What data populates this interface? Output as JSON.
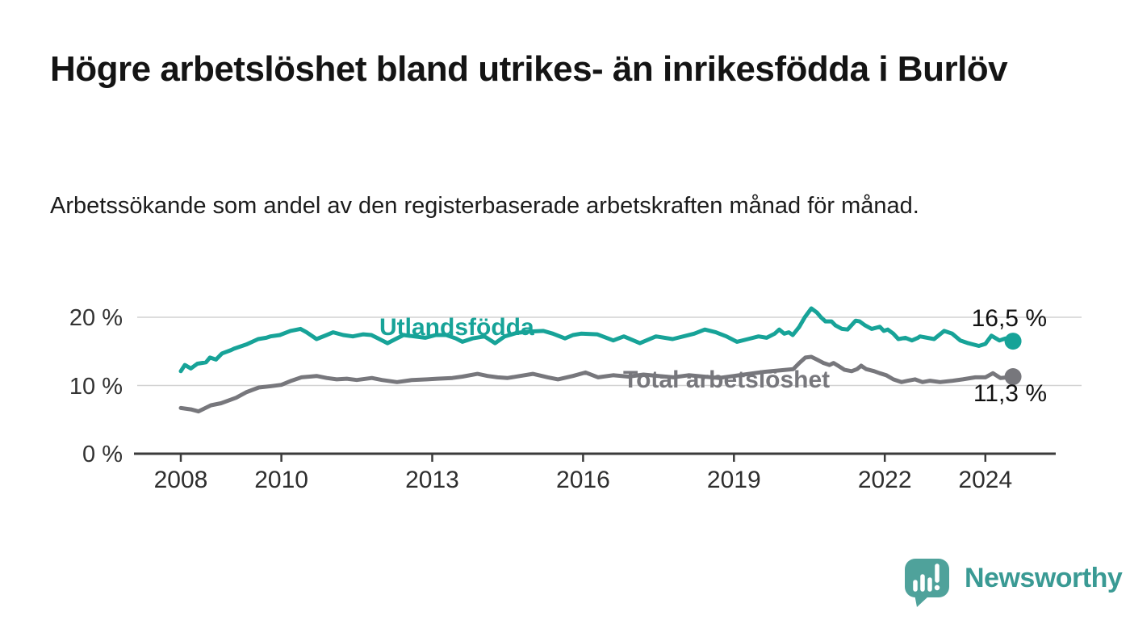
{
  "title": "Högre arbetslöshet bland utrikes- än inrikesfödda i Burlöv",
  "subtitle": "Arbetssökande som andel av den registerbaserade arbetskraften månad för månad.",
  "branding": {
    "logo_text": "Newsworthy",
    "logo_icon": "bar-chart-speech-bubble-icon",
    "logo_text_color": "#3a9a94",
    "logo_icon_color": "#4fa29b"
  },
  "chart_data": {
    "type": "line",
    "title": "Högre arbetslöshet bland utrikes- än inrikesfödda i Burlöv",
    "subtitle": "Arbetssökande som andel av den registerbaserade arbetskraften månad för månad.",
    "xlabel": "",
    "ylabel": "",
    "unit": "%",
    "grid": "horizontal",
    "legend": "inline-labels",
    "xlim": [
      2007.1,
      2025.4
    ],
    "ylim": [
      0,
      23.5
    ],
    "colors": {
      "grid": "#d2d2d2",
      "axis": "#3b3b3b",
      "tick_text": "#333333",
      "end_label_text": "#111111"
    },
    "y_ticks": [
      {
        "label": "20 %",
        "value": 20
      },
      {
        "label": "10 %",
        "value": 10
      },
      {
        "label": "0 %",
        "value": 0
      }
    ],
    "x_ticks": [
      {
        "label": "2008",
        "value": 2008
      },
      {
        "label": "2010",
        "value": 2010
      },
      {
        "label": "2013",
        "value": 2013
      },
      {
        "label": "2016",
        "value": 2016
      },
      {
        "label": "2019",
        "value": 2019
      },
      {
        "label": "2022",
        "value": 2022
      },
      {
        "label": "2024",
        "value": 2024
      }
    ],
    "series": [
      {
        "id": "utlandsfodda",
        "label": "Utlandsfödda",
        "color": "#17a398",
        "end_label": "16,5 %",
        "end_value": 16.5,
        "points": [
          [
            2008.0,
            12.1
          ],
          [
            2008.08,
            13.0
          ],
          [
            2008.2,
            12.5
          ],
          [
            2008.33,
            13.2
          ],
          [
            2008.5,
            13.4
          ],
          [
            2008.58,
            14.1
          ],
          [
            2008.7,
            13.8
          ],
          [
            2008.82,
            14.7
          ],
          [
            2009.0,
            15.2
          ],
          [
            2009.06,
            15.4
          ],
          [
            2009.3,
            16.0
          ],
          [
            2009.54,
            16.8
          ],
          [
            2009.7,
            17.0
          ],
          [
            2009.78,
            17.2
          ],
          [
            2009.97,
            17.4
          ],
          [
            2010.18,
            18.0
          ],
          [
            2010.38,
            18.3
          ],
          [
            2010.5,
            17.8
          ],
          [
            2010.7,
            16.8
          ],
          [
            2010.9,
            17.4
          ],
          [
            2011.03,
            17.8
          ],
          [
            2011.23,
            17.4
          ],
          [
            2011.42,
            17.2
          ],
          [
            2011.63,
            17.5
          ],
          [
            2011.79,
            17.4
          ],
          [
            2011.95,
            16.8
          ],
          [
            2012.11,
            16.2
          ],
          [
            2012.27,
            16.8
          ],
          [
            2012.43,
            17.4
          ],
          [
            2012.64,
            17.2
          ],
          [
            2012.86,
            17.0
          ],
          [
            2013.07,
            17.4
          ],
          [
            2013.28,
            17.4
          ],
          [
            2013.47,
            16.9
          ],
          [
            2013.6,
            16.4
          ],
          [
            2013.8,
            16.9
          ],
          [
            2014.04,
            17.2
          ],
          [
            2014.25,
            16.2
          ],
          [
            2014.44,
            17.2
          ],
          [
            2014.68,
            17.7
          ],
          [
            2014.92,
            17.9
          ],
          [
            2015.21,
            18.0
          ],
          [
            2015.4,
            17.6
          ],
          [
            2015.64,
            16.9
          ],
          [
            2015.8,
            17.4
          ],
          [
            2015.96,
            17.6
          ],
          [
            2016.28,
            17.5
          ],
          [
            2016.6,
            16.6
          ],
          [
            2016.81,
            17.2
          ],
          [
            2017.13,
            16.2
          ],
          [
            2017.45,
            17.2
          ],
          [
            2017.78,
            16.8
          ],
          [
            2018.21,
            17.6
          ],
          [
            2018.42,
            18.2
          ],
          [
            2018.64,
            17.8
          ],
          [
            2018.85,
            17.2
          ],
          [
            2019.06,
            16.4
          ],
          [
            2019.28,
            16.8
          ],
          [
            2019.49,
            17.2
          ],
          [
            2019.65,
            17.0
          ],
          [
            2019.81,
            17.6
          ],
          [
            2019.9,
            18.2
          ],
          [
            2020.0,
            17.6
          ],
          [
            2020.09,
            17.8
          ],
          [
            2020.17,
            17.4
          ],
          [
            2020.3,
            18.6
          ],
          [
            2020.41,
            20.0
          ],
          [
            2020.54,
            21.3
          ],
          [
            2020.65,
            20.7
          ],
          [
            2020.73,
            20.0
          ],
          [
            2020.82,
            19.4
          ],
          [
            2020.94,
            19.4
          ],
          [
            2021.02,
            18.8
          ],
          [
            2021.15,
            18.3
          ],
          [
            2021.26,
            18.2
          ],
          [
            2021.42,
            19.5
          ],
          [
            2021.5,
            19.4
          ],
          [
            2021.61,
            18.8
          ],
          [
            2021.74,
            18.3
          ],
          [
            2021.9,
            18.6
          ],
          [
            2021.98,
            18.0
          ],
          [
            2022.06,
            18.2
          ],
          [
            2022.17,
            17.6
          ],
          [
            2022.27,
            16.8
          ],
          [
            2022.41,
            17.0
          ],
          [
            2022.54,
            16.6
          ],
          [
            2022.66,
            17.0
          ],
          [
            2022.7,
            17.2
          ],
          [
            2022.98,
            16.8
          ],
          [
            2023.18,
            18.0
          ],
          [
            2023.34,
            17.6
          ],
          [
            2023.5,
            16.6
          ],
          [
            2023.66,
            16.2
          ],
          [
            2023.87,
            15.8
          ],
          [
            2024.0,
            16.1
          ],
          [
            2024.12,
            17.3
          ],
          [
            2024.28,
            16.6
          ],
          [
            2024.4,
            16.9
          ],
          [
            2024.55,
            16.5
          ]
        ]
      },
      {
        "id": "total",
        "label": "Total arbetslöshet",
        "color": "#77777c",
        "end_label": "11,3 %",
        "end_value": 11.3,
        "points": [
          [
            2008.0,
            6.7
          ],
          [
            2008.2,
            6.5
          ],
          [
            2008.35,
            6.2
          ],
          [
            2008.6,
            7.1
          ],
          [
            2008.8,
            7.4
          ],
          [
            2009.1,
            8.2
          ],
          [
            2009.3,
            9.0
          ],
          [
            2009.55,
            9.7
          ],
          [
            2009.8,
            9.9
          ],
          [
            2010.0,
            10.1
          ],
          [
            2010.2,
            10.7
          ],
          [
            2010.4,
            11.2
          ],
          [
            2010.7,
            11.4
          ],
          [
            2010.9,
            11.1
          ],
          [
            2011.1,
            10.9
          ],
          [
            2011.3,
            11.0
          ],
          [
            2011.5,
            10.8
          ],
          [
            2011.8,
            11.1
          ],
          [
            2012.0,
            10.8
          ],
          [
            2012.3,
            10.5
          ],
          [
            2012.6,
            10.8
          ],
          [
            2012.9,
            10.9
          ],
          [
            2013.1,
            11.0
          ],
          [
            2013.4,
            11.1
          ],
          [
            2013.6,
            11.3
          ],
          [
            2013.9,
            11.7
          ],
          [
            2014.1,
            11.4
          ],
          [
            2014.3,
            11.2
          ],
          [
            2014.5,
            11.1
          ],
          [
            2014.75,
            11.4
          ],
          [
            2015.0,
            11.7
          ],
          [
            2015.3,
            11.2
          ],
          [
            2015.5,
            10.9
          ],
          [
            2015.8,
            11.4
          ],
          [
            2016.05,
            11.9
          ],
          [
            2016.3,
            11.2
          ],
          [
            2016.6,
            11.5
          ],
          [
            2016.9,
            11.3
          ],
          [
            2017.2,
            11.6
          ],
          [
            2017.5,
            11.4
          ],
          [
            2017.8,
            11.2
          ],
          [
            2018.1,
            11.5
          ],
          [
            2018.4,
            11.3
          ],
          [
            2018.7,
            11.1
          ],
          [
            2019.0,
            11.4
          ],
          [
            2019.3,
            11.7
          ],
          [
            2019.6,
            12.0
          ],
          [
            2019.9,
            12.2
          ],
          [
            2020.18,
            12.4
          ],
          [
            2020.3,
            13.3
          ],
          [
            2020.42,
            14.1
          ],
          [
            2020.54,
            14.2
          ],
          [
            2020.65,
            13.8
          ],
          [
            2020.78,
            13.3
          ],
          [
            2020.9,
            13.0
          ],
          [
            2020.98,
            13.3
          ],
          [
            2021.07,
            12.9
          ],
          [
            2021.2,
            12.3
          ],
          [
            2021.34,
            12.1
          ],
          [
            2021.45,
            12.4
          ],
          [
            2021.53,
            12.9
          ],
          [
            2021.63,
            12.4
          ],
          [
            2021.79,
            12.1
          ],
          [
            2021.9,
            11.8
          ],
          [
            2022.03,
            11.5
          ],
          [
            2022.17,
            10.9
          ],
          [
            2022.33,
            10.5
          ],
          [
            2022.46,
            10.7
          ],
          [
            2022.6,
            10.9
          ],
          [
            2022.75,
            10.5
          ],
          [
            2022.9,
            10.7
          ],
          [
            2023.1,
            10.5
          ],
          [
            2023.35,
            10.7
          ],
          [
            2023.55,
            10.9
          ],
          [
            2023.8,
            11.2
          ],
          [
            2024.0,
            11.2
          ],
          [
            2024.15,
            11.8
          ],
          [
            2024.3,
            11.1
          ],
          [
            2024.45,
            11.2
          ],
          [
            2024.55,
            11.3
          ]
        ]
      }
    ]
  }
}
